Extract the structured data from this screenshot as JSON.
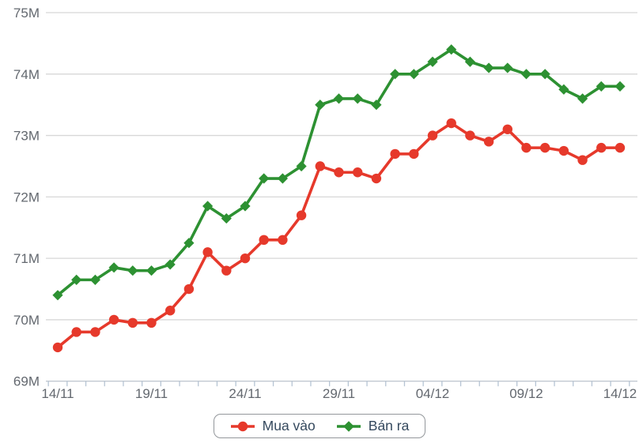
{
  "chart_data": {
    "type": "line",
    "title": "",
    "xlabel": "",
    "ylabel": "",
    "unit": "M",
    "grid": true,
    "legend_position": "bottom",
    "ylim": [
      69,
      75
    ],
    "y_ticks": [
      {
        "value": 69,
        "label": "69M"
      },
      {
        "value": 70,
        "label": "70M"
      },
      {
        "value": 71,
        "label": "71M"
      },
      {
        "value": 72,
        "label": "72M"
      },
      {
        "value": 73,
        "label": "73M"
      },
      {
        "value": 74,
        "label": "74M"
      },
      {
        "value": 75,
        "label": "75M"
      }
    ],
    "x_categories": [
      "14/11",
      "15/11",
      "16/11",
      "17/11",
      "18/11",
      "19/11",
      "20/11",
      "21/11",
      "22/11",
      "23/11",
      "24/11",
      "25/11",
      "26/11",
      "27/11",
      "28/11",
      "29/11",
      "30/11",
      "01/12",
      "02/12",
      "03/12",
      "04/12",
      "05/12",
      "06/12",
      "07/12",
      "08/12",
      "09/12",
      "10/12",
      "11/12",
      "12/12",
      "13/12",
      "14/12"
    ],
    "x_axis_labels": [
      {
        "index": 0,
        "label": "14/11"
      },
      {
        "index": 5,
        "label": "19/11"
      },
      {
        "index": 10,
        "label": "24/11"
      },
      {
        "index": 15,
        "label": "29/11"
      },
      {
        "index": 20,
        "label": "04/12"
      },
      {
        "index": 25,
        "label": "09/12"
      },
      {
        "index": 30,
        "label": "14/12"
      }
    ],
    "series": [
      {
        "name": "Mua vào",
        "marker": "circle",
        "color": "#e6392b",
        "values": [
          69.55,
          69.8,
          69.8,
          70.0,
          69.95,
          69.95,
          70.15,
          70.5,
          71.1,
          70.8,
          71.0,
          71.3,
          71.3,
          71.7,
          72.5,
          72.4,
          72.4,
          72.3,
          72.7,
          72.7,
          73.0,
          73.2,
          73.0,
          72.9,
          73.1,
          72.8,
          72.8,
          72.75,
          72.6,
          72.8,
          72.8
        ]
      },
      {
        "name": "Bán ra",
        "marker": "diamond",
        "color": "#2d9132",
        "values": [
          70.4,
          70.65,
          70.65,
          70.85,
          70.8,
          70.8,
          70.9,
          71.25,
          71.85,
          71.65,
          71.85,
          72.3,
          72.3,
          72.5,
          73.5,
          73.6,
          73.6,
          73.5,
          74.0,
          74.0,
          74.2,
          74.4,
          74.2,
          74.1,
          74.1,
          74.0,
          74.0,
          73.75,
          73.6,
          73.8,
          73.8
        ]
      }
    ]
  },
  "colors": {
    "buy_line": "#e6392b",
    "sell_line": "#2d9132",
    "grid": "#d7d7d7",
    "axis_line": "#c2c9d1",
    "tick": "#b6c4d4",
    "axis_label": "#63686f",
    "legend_text": "#35495e",
    "legend_border": "#93979b",
    "background": "#ffffff"
  }
}
